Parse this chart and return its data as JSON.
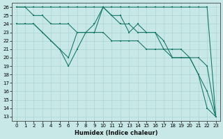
{
  "xlabel": "Humidex (Indice chaleur)",
  "xlim": [
    -0.5,
    23.5
  ],
  "ylim": [
    12.5,
    26.5
  ],
  "yticks": [
    13,
    14,
    15,
    16,
    17,
    18,
    19,
    20,
    21,
    22,
    23,
    24,
    25,
    26
  ],
  "xticks": [
    0,
    1,
    2,
    3,
    4,
    5,
    6,
    7,
    8,
    9,
    10,
    11,
    12,
    13,
    14,
    15,
    16,
    17,
    18,
    19,
    20,
    21,
    22,
    23
  ],
  "bg_color": "#c8e8e8",
  "grid_color": "#aed4d4",
  "line_color": "#1a7a6a",
  "lines": [
    {
      "x": [
        0,
        1,
        2,
        3,
        4,
        5,
        6,
        7,
        8,
        9,
        10,
        11,
        12,
        13,
        14,
        15,
        16,
        17,
        18,
        19,
        20,
        21,
        22,
        23
      ],
      "y": [
        26,
        26,
        26,
        26,
        26,
        26,
        26,
        26,
        26,
        26,
        26,
        26,
        26,
        26,
        26,
        26,
        26,
        26,
        26,
        26,
        26,
        26,
        26,
        13
      ]
    },
    {
      "x": [
        0,
        1,
        2,
        3,
        4,
        5,
        6,
        7,
        8,
        9,
        10,
        11,
        12,
        13,
        14,
        15,
        16,
        17,
        18,
        19,
        20,
        21,
        22,
        23
      ],
      "y": [
        26,
        26,
        25,
        25,
        24,
        24,
        24,
        23,
        23,
        23,
        23,
        22,
        22,
        22,
        22,
        21,
        21,
        21,
        21,
        21,
        20,
        20,
        19,
        13
      ]
    },
    {
      "x": [
        0,
        1,
        2,
        3,
        4,
        5,
        6,
        7,
        8,
        9,
        10,
        11,
        12,
        13,
        14,
        15,
        16,
        17,
        18,
        19,
        20,
        21,
        22,
        23
      ],
      "y": [
        24,
        24,
        24,
        23,
        22,
        21,
        19,
        21,
        23,
        24,
        26,
        25,
        24,
        24,
        23,
        23,
        23,
        21,
        20,
        20,
        20,
        18,
        14,
        13
      ]
    },
    {
      "x": [
        0,
        1,
        2,
        3,
        4,
        5,
        6,
        7,
        8,
        9,
        10,
        11,
        12,
        13,
        14,
        15,
        16,
        17,
        18,
        19,
        20,
        21,
        22,
        23
      ],
      "y": [
        24,
        24,
        24,
        23,
        22,
        21,
        20,
        23,
        23,
        23,
        26,
        25,
        25,
        23,
        24,
        23,
        23,
        22,
        20,
        20,
        20,
        18,
        16,
        13
      ]
    }
  ]
}
